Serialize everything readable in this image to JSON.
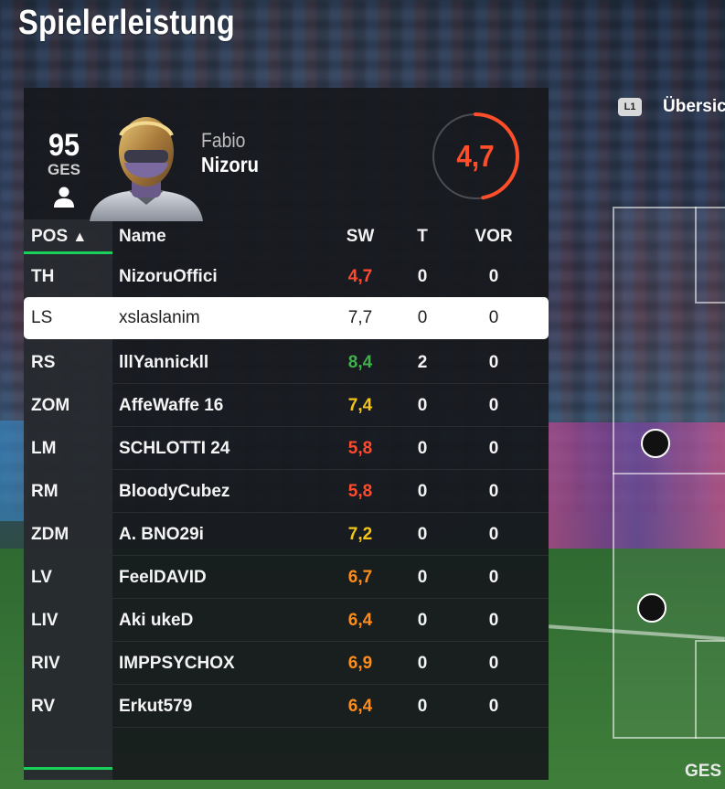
{
  "title": "Spielerleistung",
  "side_tab": {
    "button_label": "L1",
    "label": "Übersicht"
  },
  "player": {
    "rating": "95",
    "rating_label": "GES",
    "first_name": "Fabio",
    "last_name": "Nizoru",
    "score": "4,7",
    "score_fraction": 0.47
  },
  "table": {
    "headers": {
      "pos": "POS",
      "sort_arrow": "▲",
      "name": "Name",
      "sw": "SW",
      "t": "T",
      "vor": "VOR"
    },
    "selected_index": 1,
    "rows": [
      {
        "pos": "TH",
        "name": "NizoruOffici",
        "sw": "4,7",
        "t": "0",
        "vor": "0",
        "color": "#ff4a2e"
      },
      {
        "pos": "LS",
        "name": "xslaslanim",
        "sw": "7,7",
        "t": "0",
        "vor": "0",
        "color": "#1f1f1f"
      },
      {
        "pos": "RS",
        "name": "lllYannickll",
        "sw": "8,4",
        "t": "2",
        "vor": "0",
        "color": "#3fb14a"
      },
      {
        "pos": "ZOM",
        "name": "AffeWaffe 16",
        "sw": "7,4",
        "t": "0",
        "vor": "0",
        "color": "#f5c518"
      },
      {
        "pos": "LM",
        "name": "SCHLOTTI 24",
        "sw": "5,8",
        "t": "0",
        "vor": "0",
        "color": "#ff4a2e"
      },
      {
        "pos": "RM",
        "name": "BloodyCubez",
        "sw": "5,8",
        "t": "0",
        "vor": "0",
        "color": "#ff4a2e"
      },
      {
        "pos": "ZDM",
        "name": "A. BNO29i",
        "sw": "7,2",
        "t": "0",
        "vor": "0",
        "color": "#f5c518"
      },
      {
        "pos": "LV",
        "name": "FeelDAVID",
        "sw": "6,7",
        "t": "0",
        "vor": "0",
        "color": "#ff8c1a"
      },
      {
        "pos": "LIV",
        "name": "Aki ukeD",
        "sw": "6,4",
        "t": "0",
        "vor": "0",
        "color": "#ff8c1a"
      },
      {
        "pos": "RIV",
        "name": "IMPPSYCHOX",
        "sw": "6,9",
        "t": "0",
        "vor": "0",
        "color": "#ff8c1a"
      },
      {
        "pos": "RV",
        "name": "Erkut579",
        "sw": "6,4",
        "t": "0",
        "vor": "0",
        "color": "#ff8c1a"
      }
    ]
  },
  "formation": {
    "footer_label": "GES"
  },
  "colors": {
    "accent_green": "#18d05a",
    "score_red": "#ff4e2a",
    "panel_bg": "#16181c"
  }
}
